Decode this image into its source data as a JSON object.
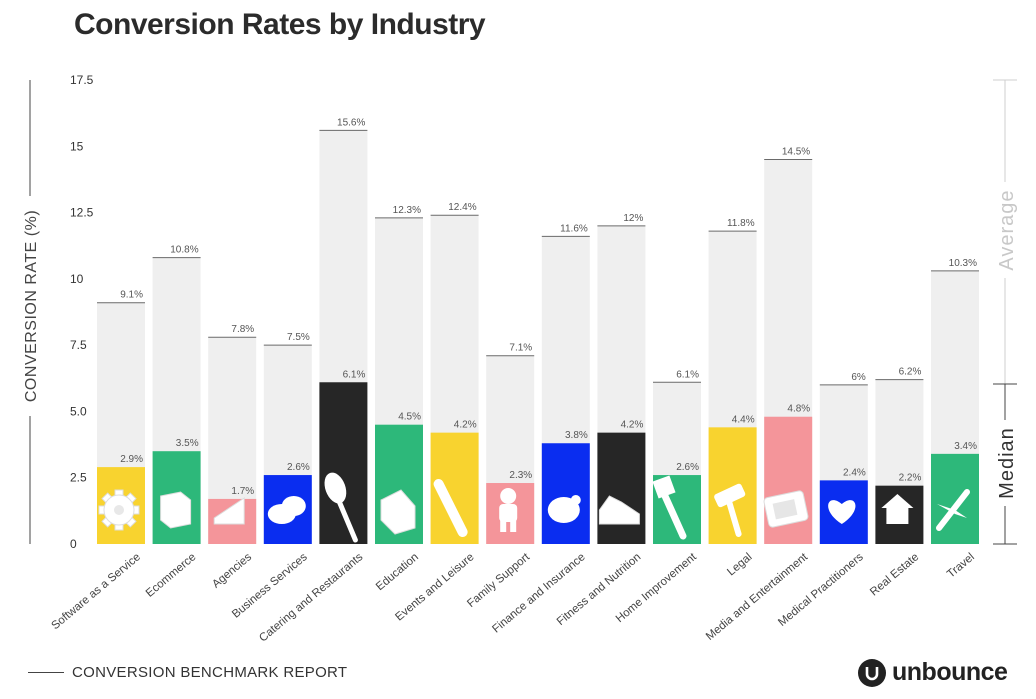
{
  "title": "Conversion Rates by Industry",
  "footer": "CONVERSION BENCHMARK REPORT",
  "brand": "unbounce",
  "side_labels": {
    "average": "Average",
    "median": "Median"
  },
  "colors": {
    "average_bar": "#efefef",
    "yellow": "#f8d32f",
    "green": "#2db87a",
    "pink": "#f4959a",
    "blue": "#0a2df0",
    "black": "#262626"
  },
  "chart_data": {
    "type": "bar",
    "ylabel": "CONVERSION RATE (%)",
    "ylim": [
      0,
      17.5
    ],
    "yticks": [
      "0",
      "2.5",
      "5.0",
      "7.5",
      "10",
      "12.5",
      "15",
      "17.5"
    ],
    "ytick_values": [
      0,
      2.5,
      5.0,
      7.5,
      10,
      12.5,
      15,
      17.5
    ],
    "grid": false,
    "categories": [
      "Software as a Service",
      "Ecommerce",
      "Agencies",
      "Business Services",
      "Catering and Restaurants",
      "Education",
      "Events and Leisure",
      "Family Support",
      "Finance and Insurance",
      "Fitness and Nutrition",
      "Home Improvement",
      "Legal",
      "Media and Entertainment",
      "Medical Practitioners",
      "Real Estate",
      "Travel"
    ],
    "series": [
      {
        "name": "Average",
        "values": [
          9.1,
          10.8,
          7.8,
          7.5,
          15.6,
          12.3,
          12.4,
          7.1,
          11.6,
          12,
          6.1,
          11.8,
          14.5,
          6,
          6.2,
          10.3
        ],
        "labels": [
          "9.1%",
          "10.8%",
          "7.8%",
          "7.5%",
          "15.6%",
          "12.3%",
          "12.4%",
          "7.1%",
          "11.6%",
          "12%",
          "6.1%",
          "11.8%",
          "14.5%",
          "6%",
          "6.2%",
          "10.3%"
        ]
      },
      {
        "name": "Median",
        "values": [
          2.9,
          3.5,
          1.7,
          2.6,
          6.1,
          4.5,
          4.2,
          2.3,
          3.8,
          4.2,
          2.6,
          4.4,
          4.8,
          2.4,
          2.2,
          3.4
        ],
        "labels": [
          "2.9%",
          "3.5%",
          "1.7%",
          "2.6%",
          "6.1%",
          "4.5%",
          "4.2%",
          "2.3%",
          "3.8%",
          "4.2%",
          "2.6%",
          "4.4%",
          "4.8%",
          "2.4%",
          "2.2%",
          "3.4%"
        ],
        "colors": [
          "#f8d32f",
          "#2db87a",
          "#f4959a",
          "#0a2df0",
          "#262626",
          "#2db87a",
          "#f8d32f",
          "#f4959a",
          "#0a2df0",
          "#262626",
          "#2db87a",
          "#f8d32f",
          "#f4959a",
          "#0a2df0",
          "#262626",
          "#2db87a"
        ],
        "icons": [
          "gear-icon",
          "box-icon",
          "megaphone-icon",
          "cloud-icon",
          "spoon-icon",
          "book-icon",
          "microphone-icon",
          "child-icon",
          "piggy-bank-icon",
          "sneakers-icon",
          "paintbrush-icon",
          "gavel-icon",
          "tv-icon",
          "heart-icon",
          "house-icon",
          "airplane-icon"
        ]
      }
    ]
  }
}
